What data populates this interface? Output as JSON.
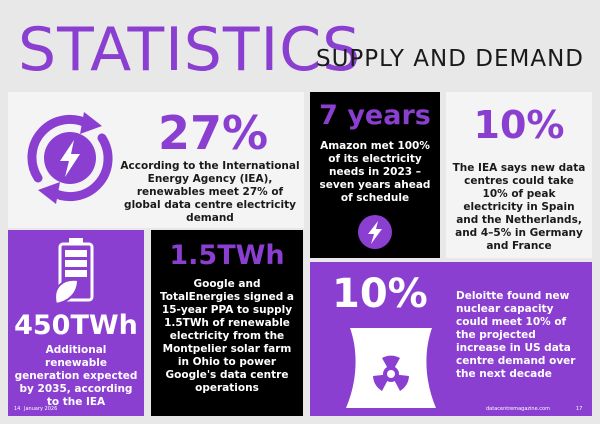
{
  "header": {
    "title": "STATISTICS",
    "subtitle": "SUPPLY AND DEMAND"
  },
  "stats": [
    {
      "value": "27%",
      "text": "According to the International Energy Agency (IEA), renewables meet 27% of global data centre electricity demand",
      "icon": "renewable-energy-cycle-icon"
    },
    {
      "value": "7 years",
      "text": "Amazon met 100% of its electricity needs in 2023 – seven years ahead of schedule",
      "icon": "lightning-icon"
    },
    {
      "value": "10%",
      "text": "The IEA says new data centres could take 10% of peak electricity in Spain and the Netherlands, and 4–5% in Germany and France"
    },
    {
      "value": "450TWh",
      "text": "Additional renewable generation expected by 2035, according to the IEA",
      "icon": "battery-leaf-icon"
    },
    {
      "value": "1.5TWh",
      "text": "Google and TotalEnergies signed a 15-year PPA to supply 1.5TWh of renewable electricity from the Montpelier solar farm in Ohio to power Google's data centre operations"
    },
    {
      "value": "10%",
      "text": "Deloitte found new nuclear capacity could meet 10% of the projected increase in US data centre demand over the next decade",
      "icon": "nuclear-plant-icon"
    }
  ],
  "footer": {
    "page_left": "14",
    "date": "January 2026",
    "site": "datacentremagazine.com",
    "page_right": "17"
  },
  "colors": {
    "accent": "#8b3fd1",
    "dark": "#000000",
    "light": "#f4f4f5",
    "background": "#e8e8e9"
  }
}
